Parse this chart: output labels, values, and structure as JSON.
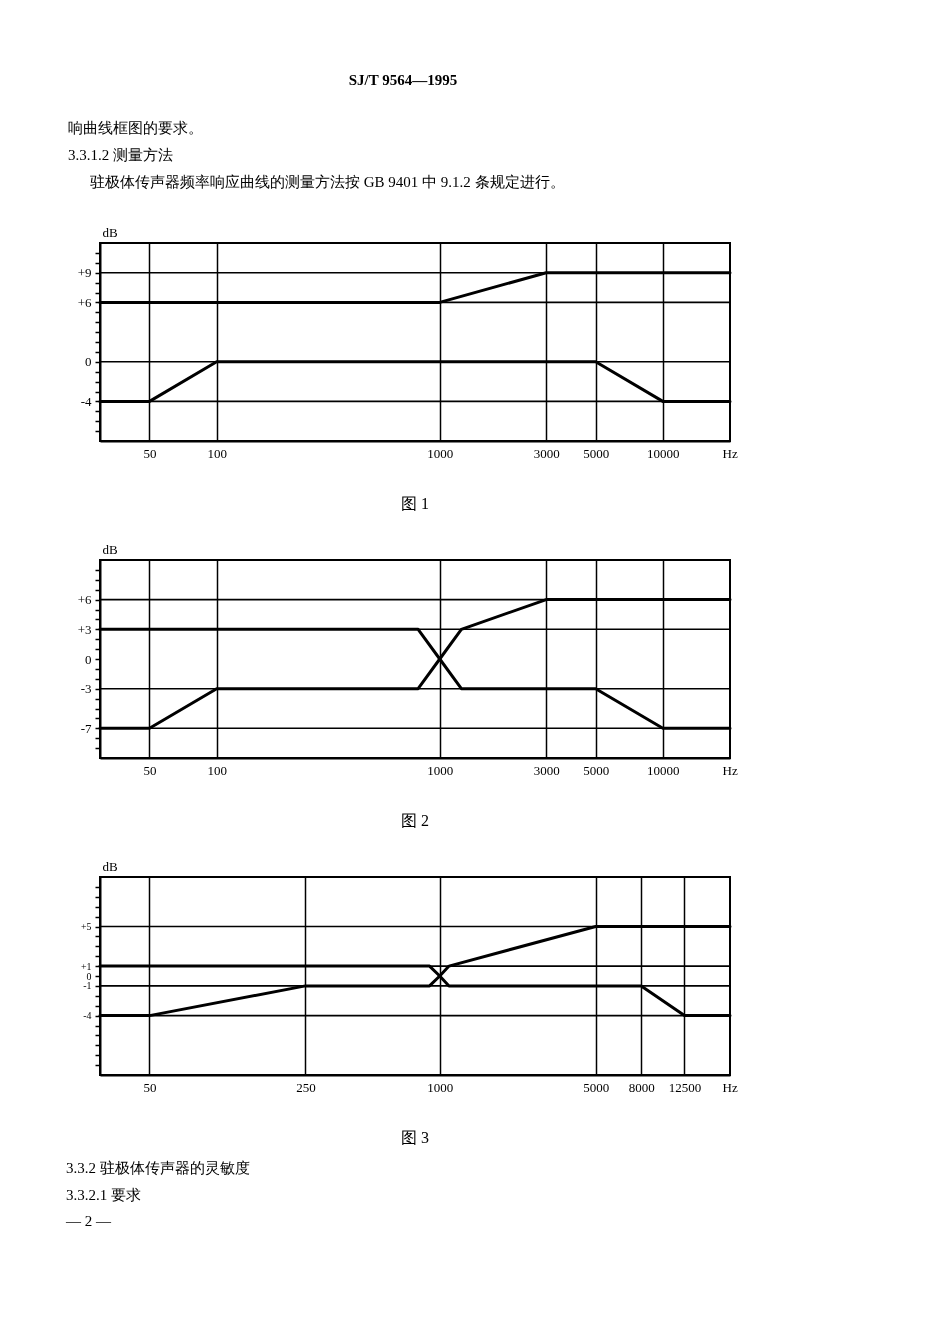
{
  "chart_data": [
    {
      "type": "line",
      "title": "图 1",
      "xlabel": "Hz",
      "ylabel": "dB",
      "log": "x",
      "grid": "x",
      "xlim": [
        30,
        20000
      ],
      "xticks": [
        50,
        100,
        1000,
        3000,
        5000,
        10000
      ],
      "ylim": [
        -8,
        12
      ],
      "yticks": [
        {
          "value": -7,
          "label": null
        },
        {
          "value": -6,
          "label": null
        },
        {
          "value": -5,
          "label": null
        },
        -4,
        {
          "value": -3,
          "label": null
        },
        {
          "value": -2,
          "label": null
        },
        {
          "value": -1,
          "label": null
        },
        0,
        {
          "value": 1,
          "label": null
        },
        {
          "value": 2,
          "label": null
        },
        {
          "value": 3,
          "label": null
        },
        {
          "value": 4,
          "label": null
        },
        {
          "value": 5,
          "label": null
        },
        {
          "value": 6,
          "label": "+6"
        },
        {
          "value": 7,
          "label": null
        },
        {
          "value": 8,
          "label": null
        },
        {
          "value": 9,
          "label": "+9"
        },
        {
          "value": 10,
          "label": null
        },
        {
          "value": 11,
          "label": null
        }
      ],
      "ref_lines": [
        {
          "axis": "y",
          "value": 9,
          "color": "#000000"
        },
        {
          "axis": "y",
          "value": 6,
          "color": "#000000"
        },
        {
          "axis": "y",
          "value": 0,
          "color": "#000000"
        },
        {
          "axis": "y",
          "value": -4,
          "color": "#000000"
        }
      ],
      "series": [
        {
          "color": "#000000",
          "x": [
            30,
            1000,
            3000,
            20000
          ],
          "values": [
            6,
            6,
            9,
            9
          ]
        },
        {
          "color": "#000000",
          "x": [
            30,
            50,
            100,
            5000,
            10000,
            20000
          ],
          "values": [
            -4,
            -4,
            0,
            0,
            -4,
            -4
          ]
        }
      ],
      "annotations": [
        "SJ/T 9564—1995",
        "响曲线框图的要求。",
        "3.3.1.2  测量方法",
        "驻极体传声器频率响应曲线的测量方法按 GB 9401 中 9.1.2 条规定进行。"
      ]
    },
    {
      "type": "line",
      "title": "图 2",
      "xlabel": "Hz",
      "ylabel": "dB",
      "log": "x",
      "grid": "x",
      "xlim": [
        30,
        20000
      ],
      "xticks": [
        50,
        100,
        1000,
        3000,
        5000,
        10000
      ],
      "ylim": [
        -10,
        10
      ],
      "yticks": [
        {
          "value": -9,
          "label": null
        },
        {
          "value": -8,
          "label": null
        },
        -7,
        {
          "value": -6,
          "label": null
        },
        {
          "value": -5,
          "label": null
        },
        {
          "value": -4,
          "label": null
        },
        -3,
        {
          "value": -2,
          "label": null
        },
        {
          "value": -1,
          "label": null
        },
        0,
        {
          "value": 1,
          "label": null
        },
        {
          "value": 2,
          "label": null
        },
        {
          "value": 3,
          "label": "+3"
        },
        {
          "value": 4,
          "label": null
        },
        {
          "value": 5,
          "label": null
        },
        {
          "value": 6,
          "label": "+6"
        },
        {
          "value": 7,
          "label": null
        },
        {
          "value": 8,
          "label": null
        },
        {
          "value": 9,
          "label": null
        }
      ],
      "ref_lines": [
        {
          "axis": "y",
          "value": 6,
          "color": "#000000"
        },
        {
          "axis": "y",
          "value": 3,
          "color": "#000000"
        },
        {
          "axis": "y",
          "value": -3,
          "color": "#000000"
        },
        {
          "axis": "y",
          "value": -7,
          "color": "#000000"
        }
      ],
      "series": [
        {
          "color": "#000000",
          "x": [
            30,
            800,
            1000,
            1250,
            3000,
            20000
          ],
          "values": [
            3,
            3,
            0,
            3,
            6,
            6
          ]
        },
        {
          "color": "#000000",
          "x": [
            30,
            50,
            100,
            800,
            1000,
            1250,
            5000,
            10000,
            20000
          ],
          "values": [
            -7,
            -7,
            -3,
            -3,
            0,
            -3,
            -3,
            -7,
            -7
          ]
        }
      ]
    },
    {
      "type": "line",
      "title": "图 3",
      "xlabel": "Hz",
      "ylabel": "dB",
      "log": "x",
      "grid": "x",
      "xlim": [
        30,
        20000
      ],
      "xticks": [
        50,
        250,
        1000,
        5000,
        8000,
        12500
      ],
      "ylim": [
        -10,
        10
      ],
      "yticks": [
        {
          "value": -9,
          "label": null
        },
        {
          "value": -8,
          "label": null
        },
        {
          "value": -7,
          "label": null
        },
        {
          "value": -6,
          "label": null
        },
        {
          "value": -5,
          "label": null
        },
        -4,
        {
          "value": -3,
          "label": null
        },
        {
          "value": -2,
          "label": null
        },
        -1,
        0,
        {
          "value": 1,
          "label": "+1"
        },
        {
          "value": 2,
          "label": null
        },
        {
          "value": 3,
          "label": null
        },
        {
          "value": 4,
          "label": null
        },
        {
          "value": 5,
          "label": "+5"
        },
        {
          "value": 6,
          "label": null
        },
        {
          "value": 7,
          "label": null
        },
        {
          "value": 8,
          "label": null
        },
        {
          "value": 9,
          "label": null
        }
      ],
      "ref_lines": [
        {
          "axis": "y",
          "value": 5,
          "color": "#000000"
        },
        {
          "axis": "y",
          "value": 1,
          "color": "#000000"
        },
        {
          "axis": "y",
          "value": -1,
          "color": "#000000"
        },
        {
          "axis": "y",
          "value": -4,
          "color": "#000000"
        }
      ],
      "series": [
        {
          "color": "#000000",
          "x": [
            30,
            900,
            1000,
            1100,
            5000,
            20000
          ],
          "values": [
            1,
            1,
            0,
            1,
            5,
            5
          ]
        },
        {
          "color": "#000000",
          "x": [
            30,
            50,
            250,
            900,
            1000,
            1100,
            8000,
            12500,
            20000
          ],
          "values": [
            -4,
            -4,
            -1,
            -1,
            0,
            -1,
            -1,
            -4,
            -4
          ]
        }
      ],
      "annotations": [
        "3.3.2  驻极体传声器的灵敏度",
        "3.3.2.1  要求",
        "— 2 —"
      ]
    }
  ]
}
